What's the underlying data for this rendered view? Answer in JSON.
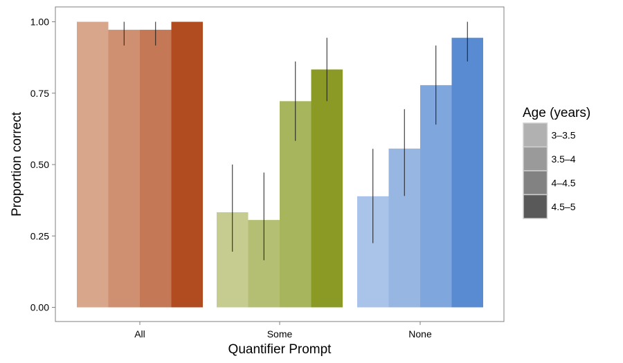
{
  "chart_data": {
    "type": "bar",
    "xlabel": "Quantifier Prompt",
    "ylabel": "Proportion correct",
    "ylim": [
      0,
      1.05
    ],
    "yticks": [
      "0.00",
      "0.25",
      "0.50",
      "0.75",
      "1.00"
    ],
    "ytick_values": [
      0,
      0.25,
      0.5,
      0.75,
      1.0
    ],
    "grid": false,
    "categories": [
      "All",
      "Some",
      "None"
    ],
    "legend": {
      "title": "Age (years)",
      "placement": "right",
      "entries": [
        "3–3.5",
        "3.5–4",
        "4–4.5",
        "4.5–5"
      ],
      "swatch_colors": [
        "#b1b1b1",
        "#9a9a9a",
        "#828282",
        "#595959"
      ]
    },
    "series": [
      {
        "name": "3–3.5",
        "values": [
          1.0,
          0.333,
          0.389
        ],
        "err_low": [
          null,
          0.195,
          0.225
        ],
        "err_high": [
          null,
          0.5,
          0.555
        ],
        "colors": [
          "#d8a68a",
          "#c6cb90",
          "#aac3e8"
        ]
      },
      {
        "name": "3.5–4",
        "values": [
          0.972,
          0.306,
          0.556
        ],
        "err_low": [
          0.917,
          0.165,
          0.39
        ],
        "err_high": [
          1.0,
          0.472,
          0.694
        ],
        "colors": [
          "#cf8f71",
          "#b5bf74",
          "#98b6e2"
        ]
      },
      {
        "name": "4–4.5",
        "values": [
          0.972,
          0.722,
          0.778
        ],
        "err_low": [
          0.917,
          0.583,
          0.64
        ],
        "err_high": [
          1.0,
          0.861,
          0.917
        ],
        "colors": [
          "#c57856",
          "#a7b65c",
          "#7fa6dd"
        ]
      },
      {
        "name": "4.5–5",
        "values": [
          1.0,
          0.833,
          0.944
        ],
        "err_low": [
          null,
          0.722,
          0.861
        ],
        "err_high": [
          null,
          0.944,
          1.0
        ],
        "colors": [
          "#b14b20",
          "#8b9a25",
          "#588bd2"
        ]
      }
    ]
  }
}
